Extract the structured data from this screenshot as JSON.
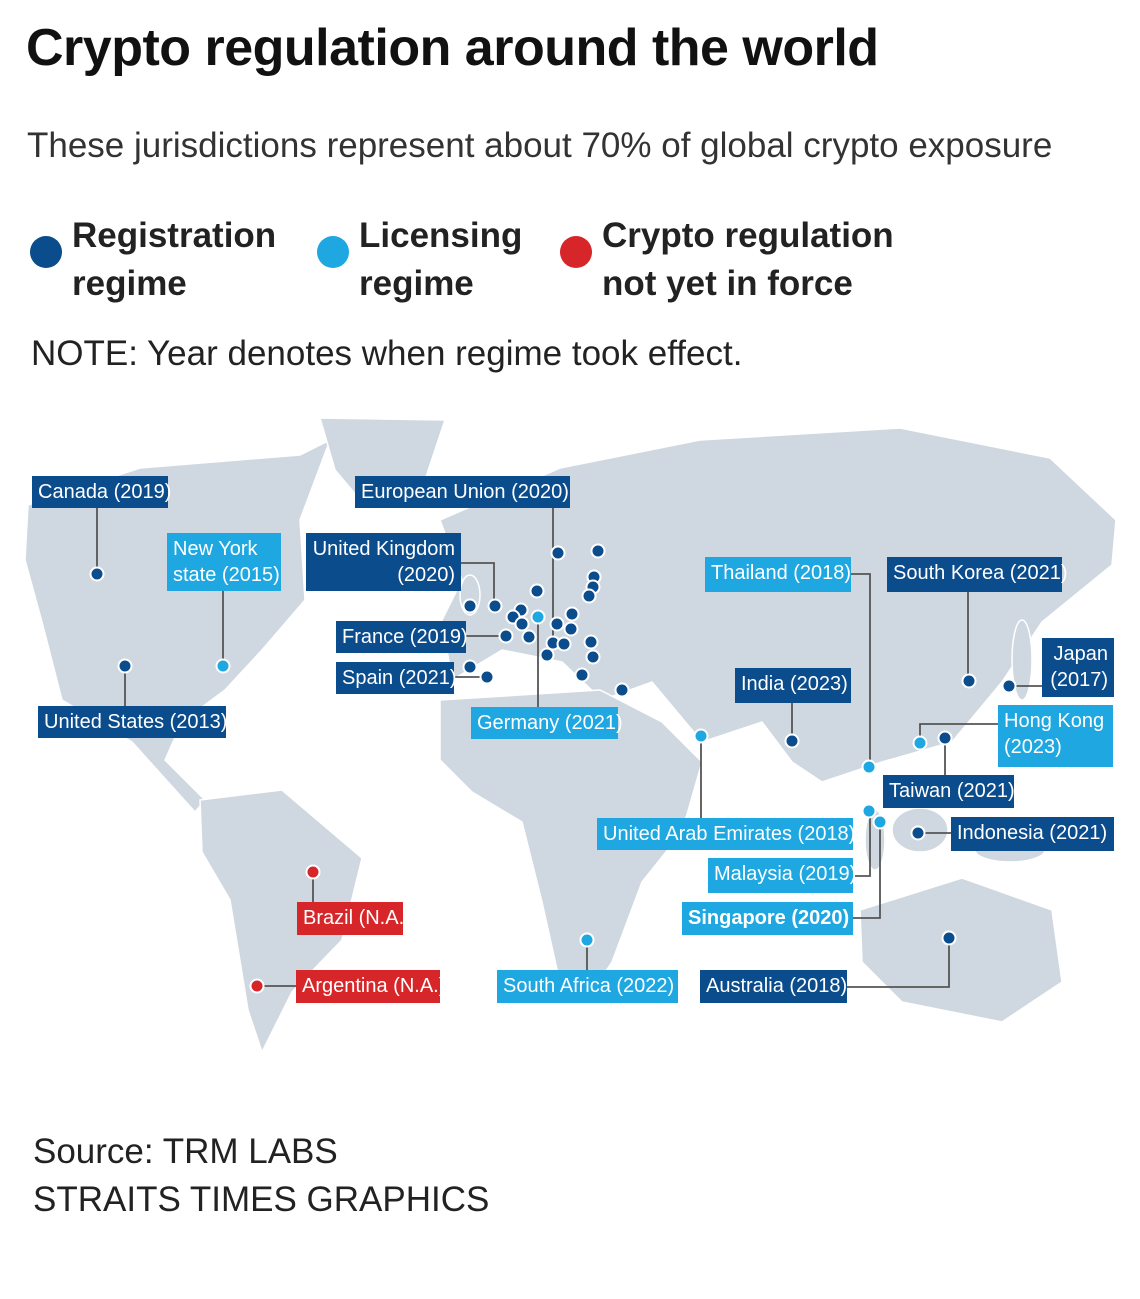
{
  "title": "Crypto regulation around the world",
  "subtitle": "These jurisdictions represent about 70% of global crypto exposure",
  "legend": [
    {
      "label": "Registration regime",
      "line1": "Registration",
      "line2": "regime",
      "color": "#0b4c8c"
    },
    {
      "label": "Licensing regime",
      "line1": "Licensing",
      "line2": "regime",
      "color": "#1ea7e1"
    },
    {
      "label": "Crypto regulation not yet in force",
      "line1": "Crypto regulation",
      "line2": "not yet in force",
      "color": "#d7262a"
    }
  ],
  "note": "NOTE: Year denotes when regime took effect.",
  "colors": {
    "registration": "#0b4c8c",
    "licensing": "#1ea7e1",
    "not_in_force": "#d7262a",
    "land": "#cfd8e0"
  },
  "jurisdictions": [
    {
      "name": "Canada",
      "year": "2019",
      "regime": "registration",
      "label": "Canada (2019)"
    },
    {
      "name": "New York state",
      "year": "2015",
      "regime": "licensing",
      "line1": "New York",
      "line2": "state (2015)"
    },
    {
      "name": "United States",
      "year": "2013",
      "regime": "registration",
      "label": "United States (2013)"
    },
    {
      "name": "European Union",
      "year": "2020",
      "regime": "registration",
      "label": "European Union (2020)"
    },
    {
      "name": "United Kingdom",
      "year": "2020",
      "regime": "registration",
      "line1": "United Kingdom",
      "line2": "(2020)"
    },
    {
      "name": "France",
      "year": "2019",
      "regime": "registration",
      "label": "France (2019)"
    },
    {
      "name": "Spain",
      "year": "2021",
      "regime": "registration",
      "label": "Spain (2021)"
    },
    {
      "name": "Germany",
      "year": "2021",
      "regime": "licensing",
      "label": "Germany (2021)"
    },
    {
      "name": "Thailand",
      "year": "2018",
      "regime": "licensing",
      "label": "Thailand (2018)"
    },
    {
      "name": "South Korea",
      "year": "2021",
      "regime": "registration",
      "label": "South Korea (2021)"
    },
    {
      "name": "Japan",
      "year": "2017",
      "regime": "registration",
      "line1": "Japan",
      "line2": "(2017)"
    },
    {
      "name": "Hong Kong",
      "year": "2023",
      "regime": "licensing",
      "line1": "Hong Kong",
      "line2": "(2023)"
    },
    {
      "name": "India",
      "year": "2023",
      "regime": "registration",
      "label": "India (2023)"
    },
    {
      "name": "Taiwan",
      "year": "2021",
      "regime": "registration",
      "label": "Taiwan (2021)"
    },
    {
      "name": "United Arab Emirates",
      "year": "2018",
      "regime": "licensing",
      "label": "United Arab Emirates (2018)"
    },
    {
      "name": "Indonesia",
      "year": "2021",
      "regime": "registration",
      "label": "Indonesia (2021)"
    },
    {
      "name": "Malaysia",
      "year": "2019",
      "regime": "licensing",
      "label": "Malaysia (2019)"
    },
    {
      "name": "Singapore",
      "year": "2020",
      "regime": "licensing",
      "label": "Singapore (2020)"
    },
    {
      "name": "Brazil",
      "year": "N.A.",
      "regime": "not_in_force",
      "label": "Brazil (N.A.)"
    },
    {
      "name": "Argentina",
      "year": "N.A.",
      "regime": "not_in_force",
      "label": "Argentina (N.A.)"
    },
    {
      "name": "South Africa",
      "year": "2022",
      "regime": "licensing",
      "label": "South Africa (2022)"
    },
    {
      "name": "Australia",
      "year": "2018",
      "regime": "registration",
      "label": "Australia (2018)"
    }
  ],
  "source": {
    "line1": "Source: TRM LABS",
    "line2": "STRAITS TIMES GRAPHICS"
  }
}
